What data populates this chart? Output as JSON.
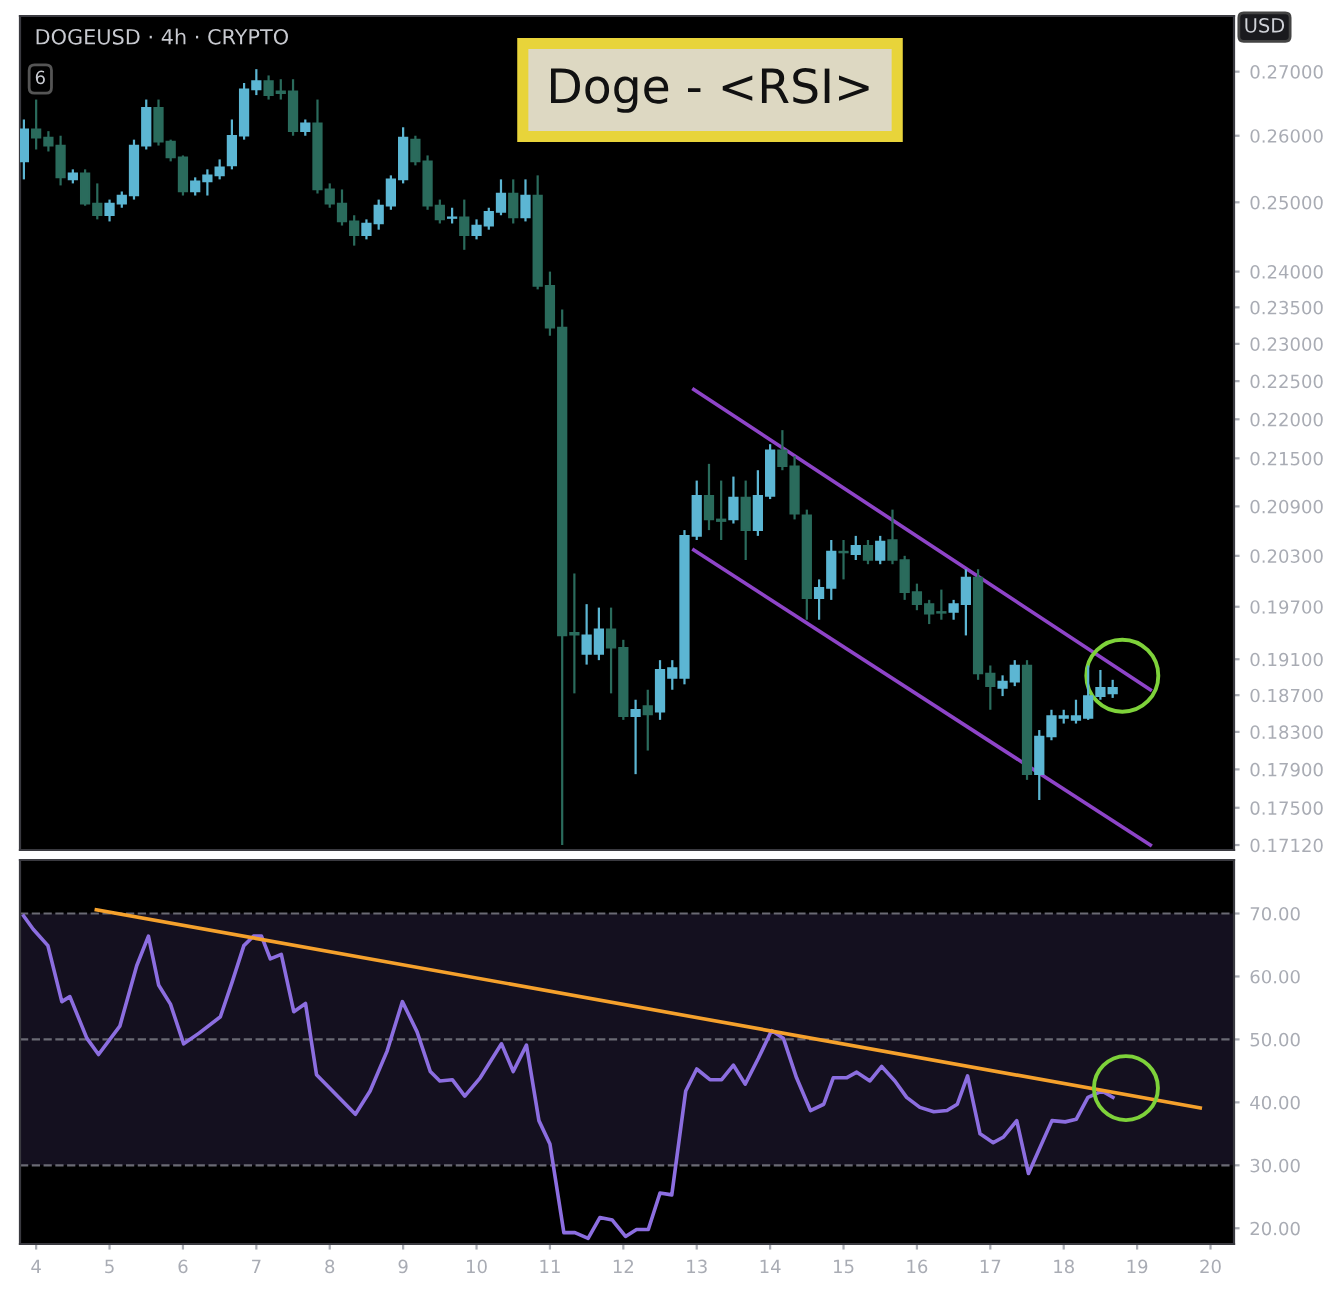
{
  "chart_data": [
    {
      "type": "candlestick",
      "title": "Doge - <RSI>",
      "subtitle": "DOGEUSD · 4h · CRYPTO",
      "ylabel": "USD",
      "annotations": [
        "6"
      ],
      "x": [
        3.833,
        4,
        4.167,
        4.333,
        4.5,
        4.667,
        4.833,
        5,
        5.167,
        5.333,
        5.5,
        5.667,
        5.833,
        6,
        6.167,
        6.333,
        6.5,
        6.667,
        6.833,
        7,
        7.167,
        7.333,
        7.5,
        7.667,
        7.833,
        8,
        8.167,
        8.333,
        8.5,
        8.667,
        8.833,
        9,
        9.167,
        9.333,
        9.5,
        9.667,
        9.833,
        10,
        10.167,
        10.333,
        10.5,
        10.667,
        10.833,
        11,
        11.167,
        11.333,
        11.5,
        11.667,
        11.833,
        12,
        12.167,
        12.333,
        12.5,
        12.667,
        12.833,
        13,
        13.167,
        13.333,
        13.5,
        13.667,
        13.833,
        14,
        14.167,
        14.333,
        14.5,
        14.667,
        14.833,
        15,
        15.167,
        15.333,
        15.5,
        15.667,
        15.833,
        16,
        16.167,
        16.333,
        16.5,
        16.667,
        16.833,
        17,
        17.167,
        17.333,
        17.5,
        17.667,
        17.833,
        18,
        18.167,
        18.333,
        18.5,
        18.667
      ],
      "ohlc": [
        [
          0.2561,
          0.2625,
          0.2534,
          0.261
        ],
        [
          0.261,
          0.2656,
          0.2579,
          0.2597
        ],
        [
          0.2597,
          0.2607,
          0.2576,
          0.2585
        ],
        [
          0.2585,
          0.26,
          0.2525,
          0.2537
        ],
        [
          0.2534,
          0.2549,
          0.2528,
          0.2543
        ],
        [
          0.2543,
          0.2549,
          0.2495,
          0.2498
        ],
        [
          0.2498,
          0.2528,
          0.2475,
          0.2481
        ],
        [
          0.2481,
          0.2504,
          0.2472,
          0.2498
        ],
        [
          0.2498,
          0.2516,
          0.2492,
          0.251
        ],
        [
          0.251,
          0.2594,
          0.2504,
          0.2585
        ],
        [
          0.2585,
          0.2656,
          0.2579,
          0.2643
        ],
        [
          0.2643,
          0.2656,
          0.2585,
          0.2591
        ],
        [
          0.2591,
          0.2594,
          0.2561,
          0.2567
        ],
        [
          0.2567,
          0.257,
          0.251,
          0.2516
        ],
        [
          0.2516,
          0.2537,
          0.251,
          0.2531
        ],
        [
          0.2531,
          0.2549,
          0.251,
          0.254
        ],
        [
          0.254,
          0.2564,
          0.2534,
          0.2552
        ],
        [
          0.2555,
          0.2625,
          0.2549,
          0.26
        ],
        [
          0.26,
          0.2682,
          0.2594,
          0.2672
        ],
        [
          0.2672,
          0.2704,
          0.2663,
          0.2685
        ],
        [
          0.2685,
          0.2694,
          0.2656,
          0.2663
        ],
        [
          0.2669,
          0.2688,
          0.2656,
          0.2666
        ],
        [
          0.2669,
          0.2688,
          0.26,
          0.2607
        ],
        [
          0.2607,
          0.2625,
          0.26,
          0.2619
        ],
        [
          0.2619,
          0.2656,
          0.2513,
          0.2519
        ],
        [
          0.2519,
          0.2528,
          0.2492,
          0.2498
        ],
        [
          0.2498,
          0.2519,
          0.2466,
          0.2472
        ],
        [
          0.2472,
          0.2481,
          0.2437,
          0.2452
        ],
        [
          0.2452,
          0.2475,
          0.2446,
          0.2469
        ],
        [
          0.2469,
          0.2504,
          0.246,
          0.2495
        ],
        [
          0.2495,
          0.254,
          0.2489,
          0.2534
        ],
        [
          0.2534,
          0.2613,
          0.2528,
          0.2597
        ],
        [
          0.2594,
          0.26,
          0.2555,
          0.2561
        ],
        [
          0.2561,
          0.257,
          0.2489,
          0.2495
        ],
        [
          0.2495,
          0.2504,
          0.2469,
          0.2475
        ],
        [
          0.2477,
          0.2492,
          0.2469,
          0.2478
        ],
        [
          0.2478,
          0.2504,
          0.2431,
          0.2452
        ],
        [
          0.2452,
          0.2475,
          0.2446,
          0.2466
        ],
        [
          0.2466,
          0.2492,
          0.246,
          0.2486
        ],
        [
          0.2486,
          0.2534,
          0.2481,
          0.2513
        ],
        [
          0.2513,
          0.2534,
          0.2469,
          0.2478
        ],
        [
          0.2478,
          0.2534,
          0.2472,
          0.251
        ],
        [
          0.251,
          0.254,
          0.2375,
          0.238
        ],
        [
          0.238,
          0.24,
          0.2311,
          0.2322
        ],
        [
          0.2322,
          0.2347,
          0.1712,
          0.1937
        ],
        [
          0.194,
          0.2009,
          0.1872,
          0.1938
        ],
        [
          0.1916,
          0.1973,
          0.1904,
          0.1937
        ],
        [
          0.1916,
          0.1969,
          0.1909,
          0.1944
        ],
        [
          0.1944,
          0.1969,
          0.1872,
          0.1923
        ],
        [
          0.1923,
          0.1932,
          0.1843,
          0.1847
        ],
        [
          0.1847,
          0.1865,
          0.1785,
          0.1854
        ],
        [
          0.1858,
          0.1876,
          0.181,
          0.1849
        ],
        [
          0.1852,
          0.1909,
          0.1843,
          0.1898
        ],
        [
          0.1889,
          0.1909,
          0.1876,
          0.19
        ],
        [
          0.1889,
          0.2061,
          0.1882,
          0.2054
        ],
        [
          0.2054,
          0.2122,
          0.2049,
          0.2103
        ],
        [
          0.2103,
          0.2143,
          0.2061,
          0.2074
        ],
        [
          0.2074,
          0.2122,
          0.2049,
          0.2072
        ],
        [
          0.2074,
          0.2127,
          0.2069,
          0.2101
        ],
        [
          0.2101,
          0.2122,
          0.2025,
          0.2061
        ],
        [
          0.2061,
          0.2135,
          0.2054,
          0.2103
        ],
        [
          0.2103,
          0.2168,
          0.2099,
          0.216
        ],
        [
          0.216,
          0.2186,
          0.2135,
          0.214
        ],
        [
          0.214,
          0.2153,
          0.2074,
          0.2081
        ],
        [
          0.2079,
          0.2086,
          0.1955,
          0.198
        ],
        [
          0.198,
          0.2002,
          0.1955,
          0.1992
        ],
        [
          0.1992,
          0.2049,
          0.1978,
          0.2035
        ],
        [
          0.2035,
          0.2049,
          0.2002,
          0.2034
        ],
        [
          0.2032,
          0.2054,
          0.2025,
          0.2042
        ],
        [
          0.2042,
          0.2049,
          0.202,
          0.2025
        ],
        [
          0.2025,
          0.2054,
          0.202,
          0.2047
        ],
        [
          0.2049,
          0.2086,
          0.202,
          0.2025
        ],
        [
          0.2025,
          0.203,
          0.1978,
          0.1987
        ],
        [
          0.1987,
          0.1997,
          0.1966,
          0.1973
        ],
        [
          0.1973,
          0.1978,
          0.195,
          0.1962
        ],
        [
          0.1964,
          0.199,
          0.1955,
          0.1963
        ],
        [
          0.1964,
          0.1978,
          0.1955,
          0.1973
        ],
        [
          0.1973,
          0.2014,
          0.1937,
          0.2004
        ],
        [
          0.2004,
          0.2014,
          0.1887,
          0.1894
        ],
        [
          0.1894,
          0.1903,
          0.1854,
          0.188
        ],
        [
          0.1878,
          0.1892,
          0.1869,
          0.1885
        ],
        [
          0.1885,
          0.1909,
          0.188,
          0.1903
        ],
        [
          0.1903,
          0.1909,
          0.1779,
          0.1785
        ],
        [
          0.1785,
          0.1832,
          0.1758,
          0.1825
        ],
        [
          0.1825,
          0.1854,
          0.1821,
          0.1847
        ],
        [
          0.1845,
          0.1854,
          0.1839,
          0.1847
        ],
        [
          0.1843,
          0.1865,
          0.1839,
          0.1847
        ],
        [
          0.1845,
          0.1903,
          0.1843,
          0.1869
        ],
        [
          0.1869,
          0.1898,
          0.1865,
          0.1878
        ],
        [
          0.1872,
          0.1887,
          0.1867,
          0.1878
        ]
      ],
      "colors": [
        "#5cb6d3",
        "#2a6b5c",
        "#2a6b5c",
        "#2a6b5c",
        "#5cb6d3",
        "#2a6b5c",
        "#2a6b5c",
        "#5cb6d3",
        "#5cb6d3",
        "#5cb6d3",
        "#5cb6d3",
        "#2a6b5c",
        "#2a6b5c",
        "#2a6b5c",
        "#5cb6d3",
        "#5cb6d3",
        "#5cb6d3",
        "#5cb6d3",
        "#5cb6d3",
        "#5cb6d3",
        "#2a6b5c",
        "#2a6b5c",
        "#2a6b5c",
        "#5cb6d3",
        "#2a6b5c",
        "#2a6b5c",
        "#2a6b5c",
        "#2a6b5c",
        "#5cb6d3",
        "#5cb6d3",
        "#5cb6d3",
        "#5cb6d3",
        "#2a6b5c",
        "#2a6b5c",
        "#2a6b5c",
        "#5cb6d3",
        "#2a6b5c",
        "#5cb6d3",
        "#5cb6d3",
        "#5cb6d3",
        "#2a6b5c",
        "#5cb6d3",
        "#2a6b5c",
        "#2a6b5c",
        "#2a6b5c",
        "#2a6b5c",
        "#5cb6d3",
        "#5cb6d3",
        "#2a6b5c",
        "#2a6b5c",
        "#5cb6d3",
        "#2a6b5c",
        "#5cb6d3",
        "#5cb6d3",
        "#5cb6d3",
        "#5cb6d3",
        "#2a6b5c",
        "#2a6b5c",
        "#5cb6d3",
        "#2a6b5c",
        "#5cb6d3",
        "#5cb6d3",
        "#2a6b5c",
        "#2a6b5c",
        "#2a6b5c",
        "#5cb6d3",
        "#5cb6d3",
        "#2a6b5c",
        "#5cb6d3",
        "#2a6b5c",
        "#5cb6d3",
        "#2a6b5c",
        "#2a6b5c",
        "#2a6b5c",
        "#2a6b5c",
        "#2a6b5c",
        "#5cb6d3",
        "#5cb6d3",
        "#2a6b5c",
        "#2a6b5c",
        "#5cb6d3",
        "#5cb6d3",
        "#2a6b5c",
        "#5cb6d3",
        "#5cb6d3",
        "#5cb6d3",
        "#5cb6d3",
        "#5cb6d3",
        "#5cb6d3",
        "#5cb6d3"
      ],
      "series": [
        {
          "type": "line",
          "x": [
            12.96,
            19.18
          ],
          "values": [
            0.2239,
            0.1876
          ],
          "color": "#8e44c8"
        },
        {
          "type": "line",
          "x": [
            12.96,
            19.18
          ],
          "values": [
            0.2037,
            0.1712
          ],
          "color": "#8e44c8"
        }
      ],
      "log": true,
      "xlim": [
        3.78,
        20.32
      ],
      "ylim": [
        0.1707,
        0.279
      ],
      "tick_labels": "y",
      "yticks": [
        {
          "value": 0.27,
          "label": "0.27000"
        },
        {
          "value": 0.26,
          "label": "0.26000"
        },
        {
          "value": 0.25,
          "label": "0.25000"
        },
        {
          "value": 0.24,
          "label": "0.24000"
        },
        {
          "value": 0.235,
          "label": "0.23500"
        },
        {
          "value": 0.23,
          "label": "0.23000"
        },
        {
          "value": 0.225,
          "label": "0.22500"
        },
        {
          "value": 0.22,
          "label": "0.22000"
        },
        {
          "value": 0.215,
          "label": "0.21500"
        },
        {
          "value": 0.209,
          "label": "0.20900"
        },
        {
          "value": 0.203,
          "label": "0.20300"
        },
        {
          "value": 0.197,
          "label": "0.19700"
        },
        {
          "value": 0.191,
          "label": "0.19100"
        },
        {
          "value": 0.187,
          "label": "0.18700"
        },
        {
          "value": 0.183,
          "label": "0.18300"
        },
        {
          "value": 0.179,
          "label": "0.17900"
        },
        {
          "value": 0.175,
          "label": "0.17500"
        },
        {
          "value": 0.1712,
          "label": "0.17120"
        }
      ]
    },
    {
      "type": "line",
      "series": [
        {
          "x": [
            3.83,
            3.96,
            4.16,
            4.35,
            4.46,
            4.69,
            4.85,
            5.14,
            5.37,
            5.53,
            5.67,
            5.83,
            6.01,
            6.22,
            6.51,
            6.67,
            6.83,
            6.96,
            7.07,
            7.19,
            7.34,
            7.51,
            7.67,
            7.82,
            8.35,
            8.55,
            8.78,
            8.99,
            9.19,
            9.37,
            9.5,
            9.67,
            9.84,
            10.05,
            10.34,
            10.5,
            10.68,
            10.85,
            11.0,
            11.19,
            11.34,
            11.52,
            11.68,
            11.85,
            12.03,
            12.18,
            12.34,
            12.5,
            12.66,
            12.85,
            13.0,
            13.18,
            13.34,
            13.5,
            13.66,
            13.84,
            14.02,
            14.18,
            14.36,
            14.55,
            14.73,
            14.86,
            15.04,
            15.18,
            15.36,
            15.52,
            15.7,
            15.86,
            16.04,
            16.23,
            16.41,
            16.55,
            16.69,
            16.86,
            17.04,
            17.18,
            17.36,
            17.52,
            17.68,
            17.84,
            18.02,
            18.17,
            18.33,
            18.52,
            18.67
          ],
          "values": [
            69.6,
            67.5,
            64.9,
            56.0,
            56.8,
            50.2,
            47.6,
            52.1,
            61.7,
            66.4,
            58.6,
            55.6,
            49.3,
            51.0,
            53.6,
            59.1,
            64.9,
            66.4,
            66.4,
            62.8,
            63.5,
            54.4,
            55.7,
            44.4,
            38.1,
            41.8,
            48.1,
            56.0,
            51.2,
            44.9,
            43.4,
            43.6,
            41.0,
            43.9,
            49.3,
            44.9,
            49.1,
            37.1,
            33.4,
            19.3,
            19.3,
            18.4,
            21.7,
            21.3,
            18.7,
            19.8,
            19.8,
            25.6,
            25.3,
            41.8,
            45.3,
            43.6,
            43.6,
            45.9,
            42.9,
            47.0,
            51.4,
            50.2,
            43.9,
            38.7,
            39.7,
            43.9,
            43.9,
            44.8,
            43.4,
            45.7,
            43.4,
            40.8,
            39.2,
            38.5,
            38.7,
            39.7,
            44.2,
            35.0,
            33.6,
            34.5,
            37.1,
            28.7,
            32.9,
            37.1,
            36.9,
            37.3,
            40.8,
            41.8,
            40.8
          ],
          "color": "#8c6ee0"
        },
        {
          "x": [
            4.82,
            19.86
          ],
          "values": [
            70.6,
            39.1
          ],
          "color": "#f5a12c"
        }
      ],
      "xlim": [
        3.78,
        20.32
      ],
      "ylim": [
        17.5,
        78.5
      ],
      "xticks": [
        4,
        5,
        6,
        7,
        8,
        9,
        10,
        11,
        12,
        13,
        14,
        15,
        16,
        17,
        18,
        19,
        20
      ],
      "yticks": [
        {
          "value": 70,
          "label": "70.00"
        },
        {
          "value": 60,
          "label": "60.00"
        },
        {
          "value": 50,
          "label": "50.00"
        },
        {
          "value": 40,
          "label": "40.00"
        },
        {
          "value": 30,
          "label": "30.00"
        },
        {
          "value": 20,
          "label": "20.00"
        }
      ],
      "ref_lines": [
        {
          "axis": "y",
          "value": 70,
          "color": "#6a6a74",
          "line_style": "dashed"
        },
        {
          "axis": "y",
          "value": 50,
          "color": "#6a6a74",
          "line_style": "dashed"
        },
        {
          "axis": "y",
          "value": 30,
          "color": "#6a6a74",
          "line_style": "dashed"
        }
      ],
      "bands": [
        {
          "axis": "y",
          "from": 30,
          "to": 70,
          "color": "#14101f"
        }
      ]
    }
  ]
}
